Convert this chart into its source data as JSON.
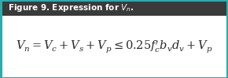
{
  "title": "Figure 9. Expression for $V_n$.",
  "title_fontsize": 7.5,
  "title_bg_color": "#3a3a3a",
  "title_text_color": "#ffffff",
  "body_bg_color": "#ffffff",
  "border_color": "#2aacac",
  "equation": "$V_n = V_c + V_s + V_p \\leq 0.25f^{\\prime}_c b_v d_v + V_p$",
  "equation_fontsize": 10.5,
  "eq_text_color": "#2a2a2a",
  "fig_width": 2.9,
  "fig_height": 0.99,
  "dpi": 100,
  "title_bar_bottom": 0.795,
  "title_bar_height": 0.205
}
